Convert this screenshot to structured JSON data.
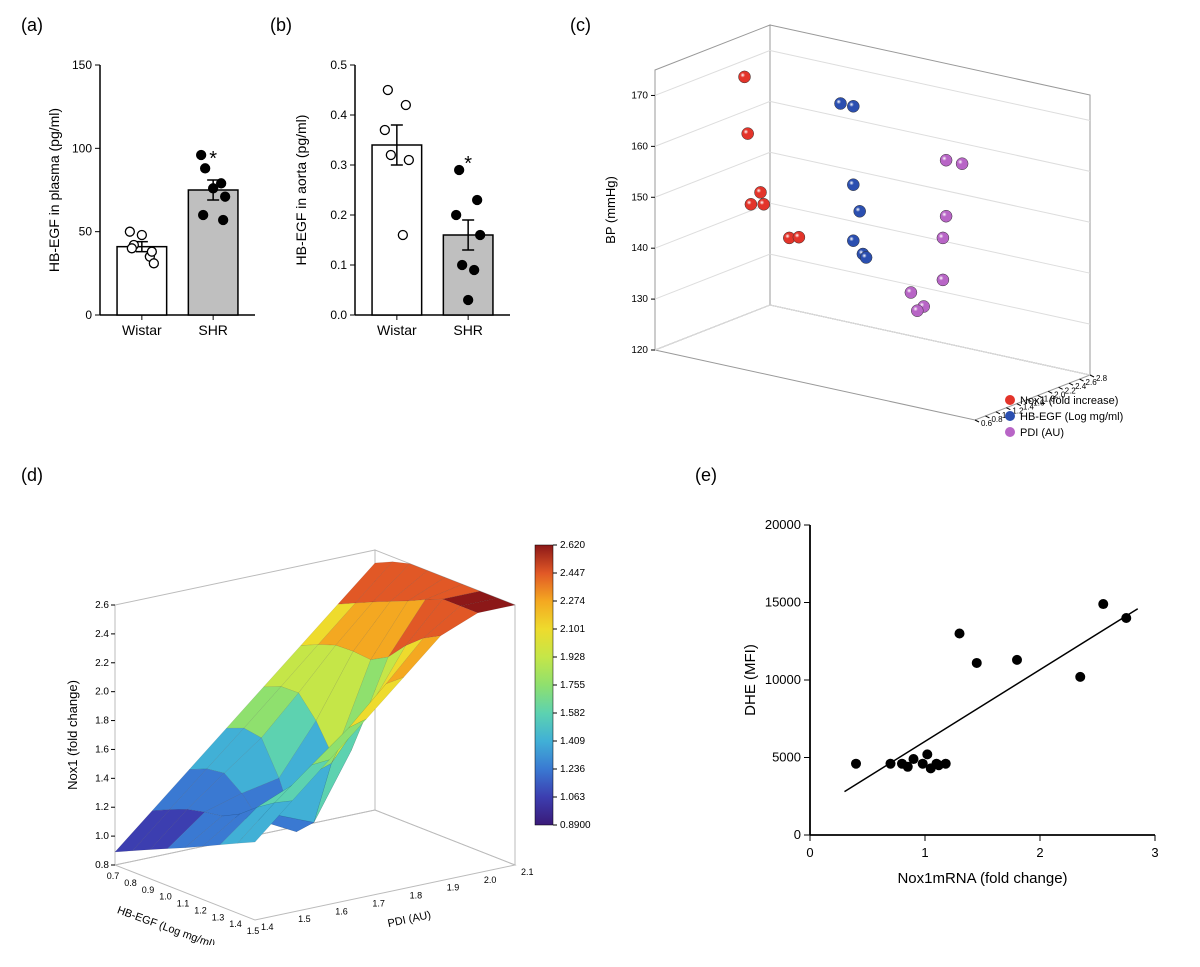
{
  "labels": {
    "a": "(a)",
    "b": "(b)",
    "c": "(c)",
    "d": "(d)",
    "e": "(e)"
  },
  "panel_a": {
    "type": "bar-scatter",
    "ylabel": "HB-EGF in plasma (pg/ml)",
    "ylim": [
      0,
      150
    ],
    "yticks": [
      0,
      50,
      100,
      150
    ],
    "categories": [
      "Wistar",
      "SHR"
    ],
    "bars": [
      {
        "mean": 41,
        "sem": 3,
        "color": "#ffffff",
        "border": "#000000"
      },
      {
        "mean": 75,
        "sem": 6,
        "color": "#bfbfbf",
        "border": "#000000"
      }
    ],
    "points": [
      [
        50,
        42,
        35,
        31,
        40,
        38,
        48
      ],
      [
        96,
        88,
        79,
        71,
        60,
        57,
        76
      ]
    ],
    "point_fill": [
      "#ffffff",
      "#000000"
    ],
    "significance": "*",
    "bar_width": 0.7,
    "axis_fontsize": 14,
    "tick_fontsize": 12
  },
  "panel_b": {
    "type": "bar-scatter",
    "ylabel": "HB-EGF in aorta (pg/ml)",
    "ylim": [
      0,
      0.5
    ],
    "yticks": [
      0.0,
      0.1,
      0.2,
      0.3,
      0.4,
      0.5
    ],
    "categories": [
      "Wistar",
      "SHR"
    ],
    "bars": [
      {
        "mean": 0.34,
        "sem": 0.04,
        "color": "#ffffff",
        "border": "#000000"
      },
      {
        "mean": 0.16,
        "sem": 0.03,
        "color": "#bfbfbf",
        "border": "#000000"
      }
    ],
    "points": [
      [
        0.45,
        0.42,
        0.37,
        0.31,
        0.32,
        0.16
      ],
      [
        0.29,
        0.23,
        0.2,
        0.16,
        0.1,
        0.09,
        0.03
      ]
    ],
    "point_fill": [
      "#ffffff",
      "#000000"
    ],
    "significance": "*",
    "bar_width": 0.7,
    "axis_fontsize": 14,
    "tick_fontsize": 12
  },
  "panel_c": {
    "type": "3d-scatter",
    "zlabel": "BP (mmHg)",
    "zlim": [
      120,
      175
    ],
    "zticks": [
      120,
      130,
      140,
      150,
      160,
      170
    ],
    "ylim": [
      0.6,
      2.8
    ],
    "yticks": [
      0.6,
      0.8,
      1.0,
      1.2,
      1.4,
      1.6,
      1.8,
      2.0,
      2.2,
      2.4,
      2.6,
      2.8
    ],
    "series": [
      {
        "name": "Nox1 (fold increase)",
        "color": "#e3342a"
      },
      {
        "name": "HB-EGF (Log mg/ml)",
        "color": "#2b4fb0"
      },
      {
        "name": "PDI (AU)",
        "color": "#b865c6"
      }
    ],
    "red_points": [
      [
        0.1,
        0.92
      ],
      [
        0.11,
        0.72
      ],
      [
        0.15,
        0.52
      ],
      [
        0.12,
        0.47
      ],
      [
        0.16,
        0.48
      ],
      [
        0.24,
        0.38
      ],
      [
        0.27,
        0.39
      ]
    ],
    "blue_points": [
      [
        0.4,
        0.9
      ],
      [
        0.44,
        0.9
      ],
      [
        0.44,
        0.62
      ],
      [
        0.46,
        0.53
      ],
      [
        0.44,
        0.42
      ],
      [
        0.47,
        0.38
      ],
      [
        0.48,
        0.37
      ]
    ],
    "purple_points": [
      [
        0.73,
        0.78
      ],
      [
        0.78,
        0.78
      ],
      [
        0.73,
        0.58
      ],
      [
        0.72,
        0.5
      ],
      [
        0.72,
        0.35
      ],
      [
        0.62,
        0.28
      ],
      [
        0.66,
        0.24
      ],
      [
        0.64,
        0.22
      ]
    ],
    "axis_fontsize": 13,
    "tick_fontsize": 10,
    "legend_fontsize": 11
  },
  "panel_d": {
    "type": "3d-surface",
    "zlabel": "Nox1 (fold change)",
    "zlim": [
      0.8,
      2.6
    ],
    "zticks": [
      0.8,
      1.0,
      1.2,
      1.4,
      1.6,
      1.8,
      2.0,
      2.2,
      2.4,
      2.6
    ],
    "xlabel": "HB-EGF (Log mg/ml)",
    "xlim": [
      0.7,
      1.5
    ],
    "xticks": [
      0.7,
      0.8,
      0.9,
      1.0,
      1.1,
      1.2,
      1.3,
      1.4,
      1.5
    ],
    "ylabel": "PDI (AU)",
    "ylim": [
      1.4,
      2.1
    ],
    "yticks": [
      1.4,
      1.5,
      1.6,
      1.7,
      1.8,
      1.9,
      2.0,
      2.1
    ],
    "colorbar": {
      "min": 0.89,
      "max": 2.62,
      "ticks": [
        0.89,
        1.063,
        1.236,
        1.409,
        1.582,
        1.755,
        1.928,
        2.101,
        2.274,
        2.447,
        2.62
      ],
      "colors": [
        "#3a1a78",
        "#3c3eb0",
        "#3a79d2",
        "#41b0d6",
        "#5dd2b0",
        "#8fe06e",
        "#c5e648",
        "#eedb2d",
        "#f4a821",
        "#e15826",
        "#8c1818"
      ]
    },
    "axis_fontsize": 13,
    "tick_fontsize": 10
  },
  "panel_e": {
    "type": "scatter-regression",
    "xlabel": "Nox1mRNA (fold change)",
    "ylabel": "DHE (MFI)",
    "xlim": [
      0,
      3
    ],
    "xticks": [
      0,
      1,
      2,
      3
    ],
    "ylim": [
      0,
      20000
    ],
    "yticks": [
      0,
      5000,
      10000,
      15000,
      20000
    ],
    "points": [
      [
        0.4,
        4600
      ],
      [
        0.7,
        4600
      ],
      [
        0.8,
        4600
      ],
      [
        0.85,
        4400
      ],
      [
        0.9,
        4900
      ],
      [
        0.98,
        4600
      ],
      [
        1.02,
        5200
      ],
      [
        1.05,
        4300
      ],
      [
        1.1,
        4600
      ],
      [
        1.12,
        4500
      ],
      [
        1.18,
        4600
      ],
      [
        1.3,
        13000
      ],
      [
        1.45,
        11100
      ],
      [
        1.8,
        11300
      ],
      [
        2.35,
        10200
      ],
      [
        2.55,
        14900
      ],
      [
        2.75,
        14000
      ]
    ],
    "point_color": "#000000",
    "line": {
      "x1": 0.3,
      "y1": 2800,
      "x2": 2.85,
      "y2": 14600,
      "color": "#000000",
      "width": 1.5
    },
    "axis_fontsize": 15,
    "tick_fontsize": 13
  }
}
